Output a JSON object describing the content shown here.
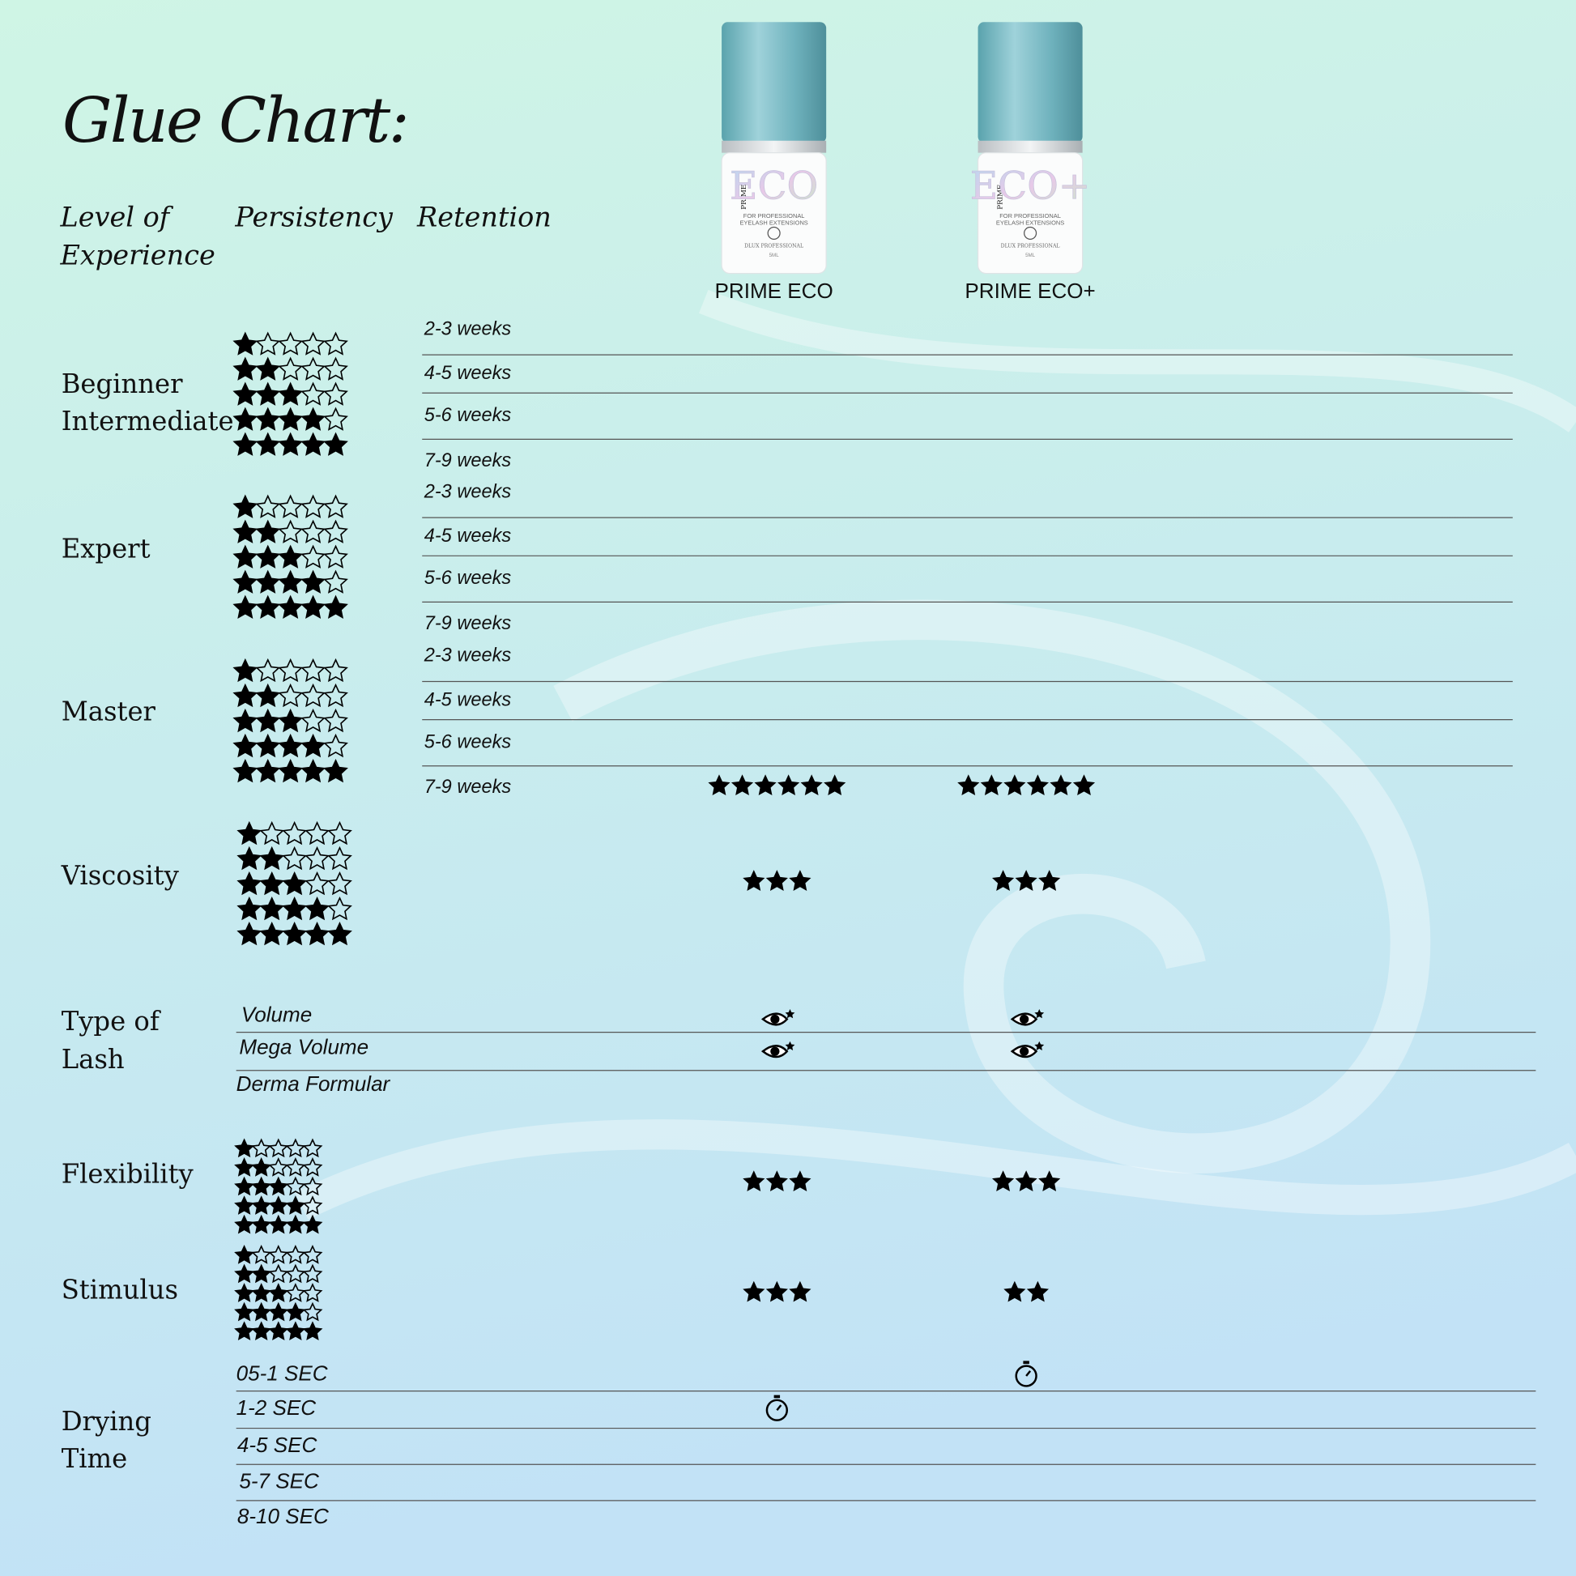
{
  "title": "Glue Chart:",
  "columns": {
    "experience": [
      "Level of",
      "Experience"
    ],
    "persistency": "Persistency",
    "retention": "Retention"
  },
  "products": [
    {
      "name": "PRIME ECO",
      "bottle": {
        "brand": "PRIME",
        "name": "ECO",
        "line1": "FOR PROFESSIONAL",
        "line2": "EYELASH EXTENSIONS",
        "maker": "DLUX PROFESSIONAL",
        "volume": "5ML"
      }
    },
    {
      "name": "PRIME ECO+",
      "bottle": {
        "brand": "PRIME",
        "name": "ECO+",
        "line1": "FOR PROFESSIONAL",
        "line2": "EYELASH EXTENSIONS",
        "maker": "DLUX PROFESSIONAL",
        "volume": "5ML"
      }
    }
  ],
  "star_scale": [
    1,
    2,
    3,
    4,
    5
  ],
  "levels": [
    {
      "label": [
        "Beginner",
        "Intermediate"
      ],
      "retention": [
        {
          "label": "2-3 weeks"
        },
        {
          "label": "4-5 weeks"
        },
        {
          "label": "5-6 weeks"
        },
        {
          "label": "7-9 weeks"
        }
      ]
    },
    {
      "label": [
        "Expert"
      ],
      "retention": [
        {
          "label": "2-3 weeks"
        },
        {
          "label": "4-5 weeks"
        },
        {
          "label": "5-6 weeks"
        },
        {
          "label": "7-9 weeks"
        }
      ]
    },
    {
      "label": [
        "Master"
      ],
      "retention": [
        {
          "label": "2-3 weeks"
        },
        {
          "label": "4-5 weeks"
        },
        {
          "label": "5-6 weeks"
        },
        {
          "label": "7-9 weeks",
          "stars": [
            6,
            6
          ]
        }
      ]
    }
  ],
  "attributes": [
    {
      "label": "Viscosity",
      "stars": [
        3,
        3
      ]
    },
    {
      "label": "Flexibility",
      "stars": [
        3,
        3
      ]
    },
    {
      "label": "Stimulus",
      "stars": [
        3,
        2
      ]
    }
  ],
  "lash_type": {
    "label": [
      "Type of",
      "Lash"
    ],
    "options": [
      {
        "label": "Volume",
        "selected": [
          true,
          true
        ]
      },
      {
        "label": "Mega Volume",
        "selected": [
          true,
          true
        ]
      },
      {
        "label": "Derma Formular",
        "selected": [
          false,
          false
        ]
      }
    ]
  },
  "drying_time": {
    "label": [
      "Drying",
      "Time"
    ],
    "options": [
      {
        "label": "05-1 SEC",
        "selected": [
          false,
          true
        ]
      },
      {
        "label": "1-2  SEC",
        "selected": [
          true,
          false
        ]
      },
      {
        "label": "4-5 SEC",
        "selected": [
          false,
          false
        ]
      },
      {
        "label": "5-7 SEC",
        "selected": [
          false,
          false
        ]
      },
      {
        "label": "8-10 SEC",
        "selected": [
          false,
          false
        ]
      }
    ]
  }
}
